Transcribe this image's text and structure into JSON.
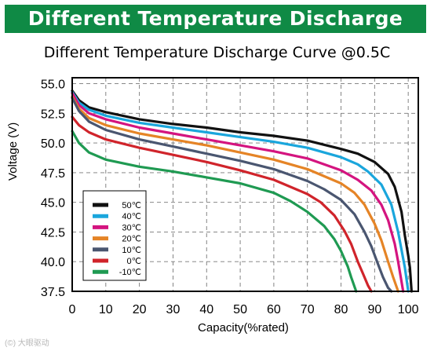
{
  "banner": {
    "text": "Different Temperature Discharge Curve"
  },
  "watermark": {
    "text": "(©) 大眼驱动"
  },
  "chart_data": {
    "type": "line",
    "title": "Different Temperature Discharge Curve @0.5C",
    "xlabel": "Capacity(%rated)",
    "ylabel": "Voltage (V)",
    "xlim": [
      0,
      103
    ],
    "ylim": [
      37.5,
      55.5
    ],
    "grid": true,
    "legend_position": "bottom-left",
    "x_ticks": [
      0,
      10,
      20,
      30,
      40,
      50,
      60,
      70,
      80,
      90,
      100
    ],
    "y_ticks": [
      37.5,
      40.0,
      42.5,
      45.0,
      47.5,
      50.0,
      52.5,
      55.0
    ],
    "x_tick_labels": [
      "0",
      "10",
      "20",
      "30",
      "40",
      "50",
      "60",
      "70",
      "80",
      "90",
      "100"
    ],
    "y_tick_labels": [
      "37.5",
      "40.0",
      "42.5",
      "45.0",
      "47.5",
      "50.0",
      "52.5",
      "55.0"
    ],
    "series": [
      {
        "name": "50℃",
        "color": "#111111",
        "x": [
          0,
          2,
          5,
          10,
          20,
          30,
          40,
          50,
          60,
          70,
          80,
          85,
          90,
          94,
          96,
          98,
          99,
          100,
          100.5,
          101
        ],
        "y": [
          54.4,
          53.6,
          53.0,
          52.6,
          52.0,
          51.6,
          51.3,
          50.9,
          50.6,
          50.2,
          49.5,
          49.1,
          48.4,
          47.4,
          46.3,
          44.2,
          42.2,
          40.5,
          39.5,
          37.5
        ]
      },
      {
        "name": "40℃",
        "color": "#1aa6dc",
        "x": [
          0,
          2,
          5,
          10,
          20,
          30,
          40,
          50,
          60,
          70,
          80,
          85,
          88,
          92,
          95,
          97,
          98,
          99,
          100
        ],
        "y": [
          54.3,
          53.4,
          52.8,
          52.3,
          51.7,
          51.3,
          50.9,
          50.5,
          50.1,
          49.6,
          48.8,
          48.2,
          47.6,
          46.5,
          44.8,
          42.5,
          41.0,
          39.5,
          37.5
        ]
      },
      {
        "name": "30℃",
        "color": "#d4147f",
        "x": [
          0,
          2,
          5,
          10,
          20,
          30,
          40,
          50,
          60,
          70,
          80,
          85,
          89,
          92,
          94,
          96,
          97,
          98.5
        ],
        "y": [
          54.2,
          53.2,
          52.5,
          52.0,
          51.3,
          50.8,
          50.3,
          49.8,
          49.3,
          48.7,
          47.7,
          46.9,
          46.0,
          44.8,
          43.5,
          41.5,
          40.0,
          37.5
        ]
      },
      {
        "name": "20℃",
        "color": "#e58426",
        "x": [
          0,
          2,
          5,
          10,
          20,
          30,
          40,
          50,
          60,
          70,
          80,
          84,
          87,
          90,
          92,
          94,
          95.5,
          97
        ],
        "y": [
          53.9,
          52.9,
          52.1,
          51.5,
          50.8,
          50.3,
          49.8,
          49.2,
          48.6,
          47.8,
          46.6,
          45.8,
          44.8,
          43.2,
          41.8,
          40.0,
          38.7,
          37.5
        ]
      },
      {
        "name": "10℃",
        "color": "#4a5670",
        "x": [
          0,
          2,
          5,
          10,
          20,
          30,
          40,
          50,
          60,
          70,
          75,
          80,
          84,
          87,
          89,
          91,
          92.5,
          94,
          95
        ],
        "y": [
          53.8,
          52.7,
          51.8,
          51.1,
          50.3,
          49.7,
          49.1,
          48.5,
          47.8,
          46.8,
          46.1,
          45.2,
          44.0,
          42.5,
          41.3,
          39.8,
          38.7,
          37.8,
          37.5
        ]
      },
      {
        "name": "0℃",
        "color": "#d0242b",
        "x": [
          0,
          2,
          5,
          10,
          20,
          30,
          40,
          50,
          60,
          70,
          74,
          78,
          81,
          83,
          85,
          86.5,
          88,
          89
        ],
        "y": [
          52.2,
          51.5,
          50.9,
          50.3,
          49.6,
          49.0,
          48.4,
          47.7,
          46.9,
          45.7,
          45.0,
          43.9,
          42.6,
          41.5,
          40.0,
          39.0,
          38.0,
          37.5
        ]
      },
      {
        "name": "-10℃",
        "color": "#1f9a52",
        "x": [
          0,
          2,
          5,
          10,
          20,
          30,
          40,
          50,
          60,
          65,
          70,
          75,
          78,
          80,
          82,
          83,
          84.5
        ],
        "y": [
          51.0,
          50.0,
          49.2,
          48.6,
          48.0,
          47.6,
          47.1,
          46.6,
          45.8,
          45.1,
          44.2,
          43.0,
          41.9,
          40.9,
          39.6,
          38.7,
          37.5
        ]
      }
    ]
  }
}
